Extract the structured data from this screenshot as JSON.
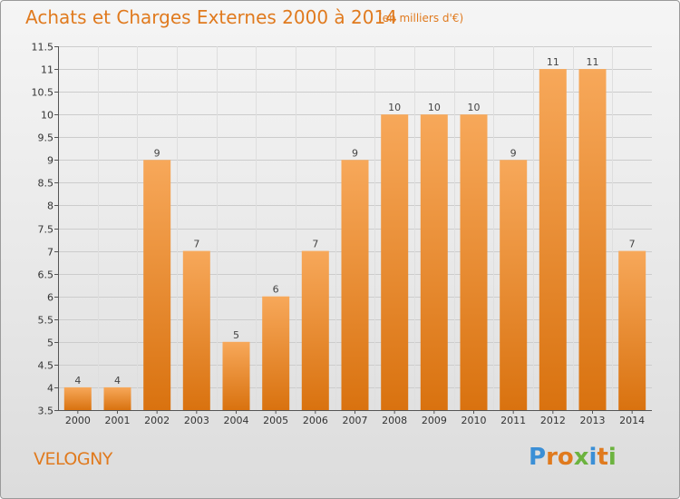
{
  "header": {
    "title": "Achats et Charges Externes 2000 à 2014",
    "subtitle": "(en milliers d'€)"
  },
  "footer": {
    "commune": "VELOGNY",
    "logo_letters": [
      {
        "char": "P",
        "color": "#3b8fd6"
      },
      {
        "char": "r",
        "color": "#e07a1e"
      },
      {
        "char": "o",
        "color": "#e07a1e"
      },
      {
        "char": "x",
        "color": "#6cb33f"
      },
      {
        "char": "i",
        "color": "#3b8fd6"
      },
      {
        "char": "t",
        "color": "#e07a1e"
      },
      {
        "char": "i",
        "color": "#6cb33f"
      }
    ]
  },
  "colors": {
    "accent": "#e07a1e",
    "bar_top": "#f7a85a",
    "bar_bottom": "#d9720f",
    "grid": "#cccccc"
  },
  "chart_data": {
    "type": "bar",
    "categories": [
      "2000",
      "2001",
      "2002",
      "2003",
      "2004",
      "2005",
      "2006",
      "2007",
      "2008",
      "2009",
      "2010",
      "2011",
      "2012",
      "2013",
      "2014"
    ],
    "values": [
      4,
      4,
      9,
      7,
      5,
      6,
      7,
      9,
      10,
      10,
      10,
      9,
      11,
      11,
      7
    ],
    "data_labels": [
      "4",
      "4",
      "9",
      "7",
      "5",
      "6",
      "7",
      "9",
      "10",
      "10",
      "10",
      "9",
      "11",
      "11",
      "7"
    ],
    "title": "Achats et Charges Externes 2000 à 2014",
    "subtitle": "(en milliers d'€)",
    "xlabel": "",
    "ylabel": "",
    "ylim": [
      3.5,
      11.5
    ],
    "yticks": [
      3.5,
      4,
      4.5,
      5,
      5.5,
      6,
      6.5,
      7,
      7.5,
      8,
      8.5,
      9,
      9.5,
      10,
      10.5,
      11,
      11.5
    ],
    "ytick_labels": [
      "3.5",
      "4",
      "4.5",
      "5",
      "5.5",
      "6",
      "6.5",
      "7",
      "7.5",
      "8",
      "8.5",
      "9",
      "9.5",
      "10",
      "10.5",
      "11",
      "11.5"
    ],
    "grid": true,
    "legend": "none"
  }
}
